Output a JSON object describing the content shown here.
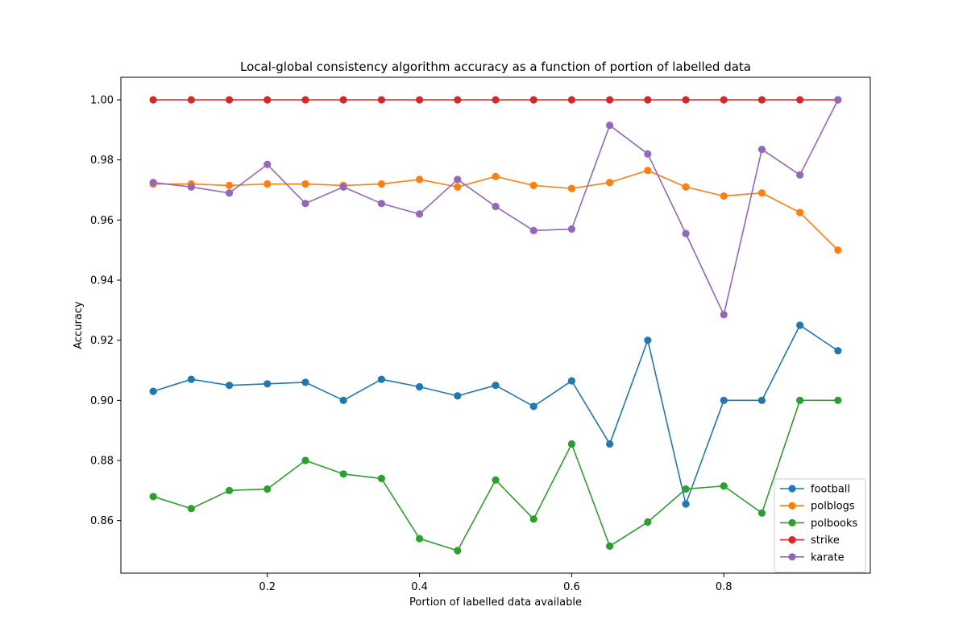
{
  "chart_data": {
    "type": "line",
    "title": "Local-global consistency algorithm accuracy as a function of portion of labelled data",
    "xlabel": "Portion of labelled data available",
    "ylabel": "Accuracy",
    "xlim": [
      0.0075,
      0.9925
    ],
    "ylim": [
      0.8425,
      1.0075
    ],
    "x_ticks": [
      0.2,
      0.4,
      0.6,
      0.8
    ],
    "x_tick_labels": [
      "0.2",
      "0.4",
      "0.6",
      "0.8"
    ],
    "y_ticks": [
      0.86,
      0.88,
      0.9,
      0.92,
      0.94,
      0.96,
      0.98,
      1.0
    ],
    "y_tick_labels": [
      "0.86",
      "0.88",
      "0.90",
      "0.92",
      "0.94",
      "0.96",
      "0.98",
      "1.00"
    ],
    "grid": false,
    "legend_position": "lower-right",
    "x": [
      0.05,
      0.1,
      0.15,
      0.2,
      0.25,
      0.3,
      0.35,
      0.4,
      0.45,
      0.5,
      0.55,
      0.6,
      0.65,
      0.7,
      0.75,
      0.8,
      0.85,
      0.9,
      0.95
    ],
    "series": [
      {
        "name": "football",
        "color": "#1f77b4",
        "values": [
          0.903,
          0.907,
          0.905,
          0.9055,
          0.906,
          0.9,
          0.907,
          0.9045,
          0.9015,
          0.905,
          0.898,
          0.9065,
          0.8855,
          0.92,
          0.8655,
          0.9,
          0.9,
          0.925,
          0.9165
        ]
      },
      {
        "name": "polblogs",
        "color": "#ff7f0e",
        "values": [
          0.972,
          0.972,
          0.9715,
          0.972,
          0.972,
          0.9715,
          0.972,
          0.9735,
          0.971,
          0.9745,
          0.9715,
          0.9705,
          0.9725,
          0.9765,
          0.971,
          0.968,
          0.969,
          0.9625,
          0.95
        ]
      },
      {
        "name": "polbooks",
        "color": "#2ca02c",
        "values": [
          0.868,
          0.864,
          0.87,
          0.8705,
          0.88,
          0.8755,
          0.874,
          0.854,
          0.85,
          0.8735,
          0.8605,
          0.8855,
          0.8515,
          0.8595,
          0.8705,
          0.8715,
          0.8625,
          0.9,
          0.9
        ]
      },
      {
        "name": "strike",
        "color": "#d62728",
        "values": [
          1.0,
          1.0,
          1.0,
          1.0,
          1.0,
          1.0,
          1.0,
          1.0,
          1.0,
          1.0,
          1.0,
          1.0,
          1.0,
          1.0,
          1.0,
          1.0,
          1.0,
          1.0,
          1.0
        ]
      },
      {
        "name": "karate",
        "color": "#9467bd",
        "values": [
          0.9725,
          0.971,
          0.969,
          0.9785,
          0.9655,
          0.971,
          0.9655,
          0.962,
          0.9735,
          0.9645,
          0.9565,
          0.957,
          0.9915,
          0.982,
          0.9555,
          0.9285,
          0.9835,
          0.975,
          1.0
        ]
      }
    ]
  }
}
